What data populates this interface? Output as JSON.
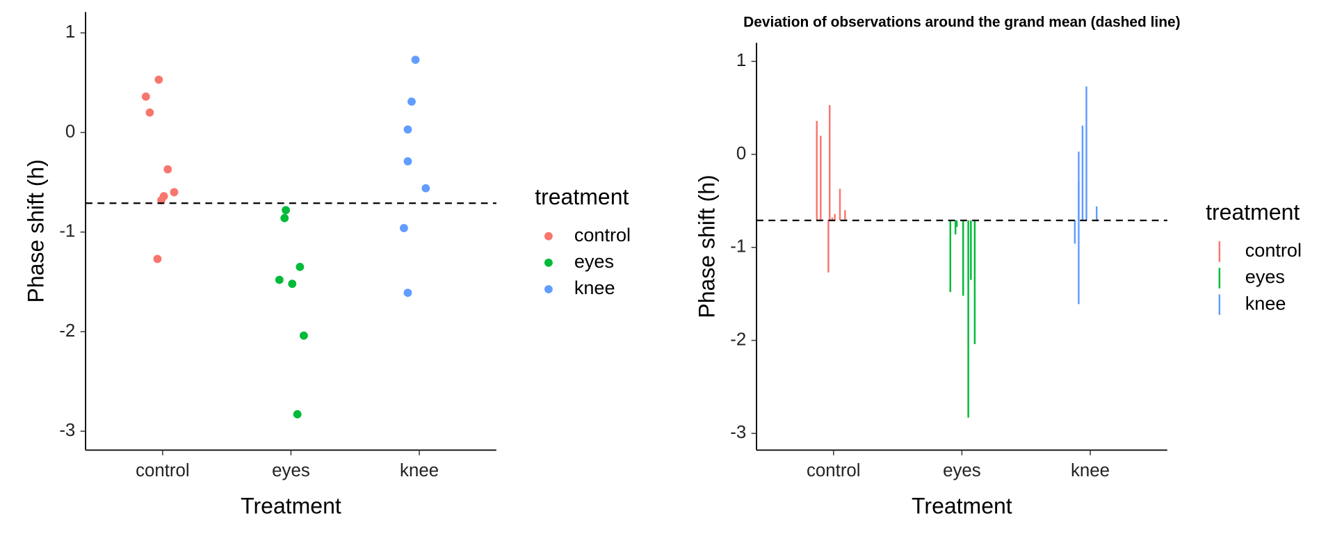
{
  "chart_data": [
    {
      "type": "scatter",
      "x_label": "Treatment",
      "y_label": "Phase shift (h)",
      "xlim": [
        0.4,
        3.6
      ],
      "xticks": [
        {
          "value": 1,
          "label": "control"
        },
        {
          "value": 2,
          "label": "eyes"
        },
        {
          "value": 3,
          "label": "knee"
        }
      ],
      "ylim": [
        -3.19,
        1.21
      ],
      "yticks": [
        1,
        0,
        -1,
        -2,
        -3
      ],
      "hline": -0.71,
      "legend": "right",
      "legend_title": "treatment",
      "series": [
        {
          "name": "control",
          "color": "#F8766D",
          "x": [
            0.97,
            0.87,
            0.9,
            1.04,
            1.09,
            1.01,
            0.99,
            0.96
          ],
          "values": [
            0.53,
            0.36,
            0.2,
            -0.37,
            -0.6,
            -0.64,
            -0.68,
            -1.27
          ]
        },
        {
          "name": "eyes",
          "color": "#00BA38",
          "x": [
            1.96,
            1.95,
            2.07,
            1.91,
            2.01,
            2.1,
            2.05
          ],
          "values": [
            -0.78,
            -0.86,
            -1.35,
            -1.48,
            -1.52,
            -2.04,
            -2.83
          ]
        },
        {
          "name": "knee",
          "color": "#619CFF",
          "x": [
            2.97,
            2.94,
            2.91,
            2.91,
            3.05,
            2.88,
            2.91
          ],
          "values": [
            0.73,
            0.31,
            0.03,
            -0.29,
            -0.56,
            -0.96,
            -1.61
          ]
        }
      ]
    },
    {
      "type": "deviation",
      "title": "Deviation of observations around the grand mean (dashed line)",
      "x_label": "Treatment",
      "y_label": "Phase shift (h)",
      "xlim": [
        0.4,
        3.6
      ],
      "xticks": [
        {
          "value": 1,
          "label": "control"
        },
        {
          "value": 2,
          "label": "eyes"
        },
        {
          "value": 3,
          "label": "knee"
        }
      ],
      "ylim": [
        -3.18,
        1.2
      ],
      "yticks": [
        1,
        0,
        -1,
        -2,
        -3
      ],
      "hline": -0.71,
      "legend": "right",
      "legend_title": "treatment",
      "series": [
        {
          "name": "control",
          "color": "#F8766D",
          "x": [
            0.97,
            0.87,
            0.9,
            1.05,
            1.09,
            1.01,
            0.99,
            0.96
          ],
          "values": [
            0.53,
            0.36,
            0.2,
            -0.37,
            -0.6,
            -0.64,
            -0.68,
            -1.27
          ]
        },
        {
          "name": "eyes",
          "color": "#00BA38",
          "x": [
            1.96,
            1.95,
            2.07,
            1.91,
            2.01,
            2.1,
            2.05
          ],
          "values": [
            -0.78,
            -0.86,
            -1.35,
            -1.48,
            -1.52,
            -2.04,
            -2.83
          ]
        },
        {
          "name": "knee",
          "color": "#619CFF",
          "x": [
            2.97,
            2.94,
            2.91,
            2.91,
            3.05,
            2.88,
            2.91
          ],
          "values": [
            0.73,
            0.31,
            0.03,
            -0.29,
            -0.56,
            -0.96,
            -1.61
          ]
        }
      ]
    }
  ]
}
